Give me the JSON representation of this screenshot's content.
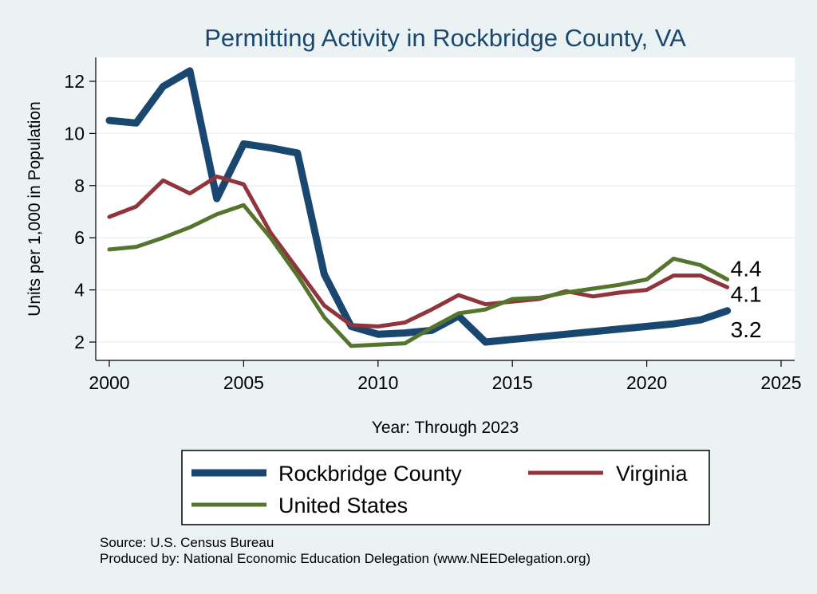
{
  "chart_data": {
    "type": "line",
    "title": "Permitting Activity in Rockbridge County, VA",
    "xlabel": "Year: Through 2023",
    "ylabel": "Units per 1,000 in Population",
    "xlim": [
      2000,
      2025
    ],
    "ylim": [
      1.5,
      13
    ],
    "xticks": [
      2000,
      2005,
      2010,
      2015,
      2020,
      2025
    ],
    "yticks": [
      2,
      4,
      6,
      8,
      10,
      12
    ],
    "grid": true,
    "x": [
      2000,
      2001,
      2002,
      2003,
      2004,
      2005,
      2006,
      2007,
      2008,
      2009,
      2010,
      2011,
      2012,
      2013,
      2014,
      2015,
      2016,
      2017,
      2018,
      2019,
      2020,
      2021,
      2022,
      2023
    ],
    "series": [
      {
        "name": "Rockbridge County",
        "color": "#1a476f",
        "values": [
          10.5,
          10.4,
          11.8,
          12.4,
          7.5,
          9.6,
          9.45,
          9.25,
          4.6,
          2.6,
          2.3,
          2.35,
          2.45,
          3.0,
          2.0,
          2.1,
          2.2,
          2.3,
          2.4,
          2.5,
          2.6,
          2.7,
          2.85,
          3.2
        ],
        "end_label": "3.2"
      },
      {
        "name": "Virginia",
        "color": "#90353b",
        "values": [
          6.8,
          7.2,
          8.2,
          7.7,
          8.35,
          8.05,
          6.2,
          4.8,
          3.4,
          2.65,
          2.6,
          2.75,
          3.25,
          3.8,
          3.45,
          3.55,
          3.65,
          3.95,
          3.75,
          3.9,
          4.0,
          4.55,
          4.55,
          4.1
        ],
        "end_label": "4.1"
      },
      {
        "name": "United States",
        "color": "#55752f",
        "values": [
          5.55,
          5.65,
          6.0,
          6.4,
          6.9,
          7.25,
          6.0,
          4.55,
          2.95,
          1.85,
          1.9,
          1.95,
          2.55,
          3.1,
          3.25,
          3.65,
          3.7,
          3.9,
          4.05,
          4.2,
          4.4,
          5.2,
          4.95,
          4.4
        ],
        "end_label": "4.4"
      }
    ],
    "legend": "bottom"
  },
  "footer": {
    "source": "Source: U.S. Census Bureau",
    "produced_by": "Produced by: National Economic Education Delegation (www.NEEDelegation.org)"
  }
}
